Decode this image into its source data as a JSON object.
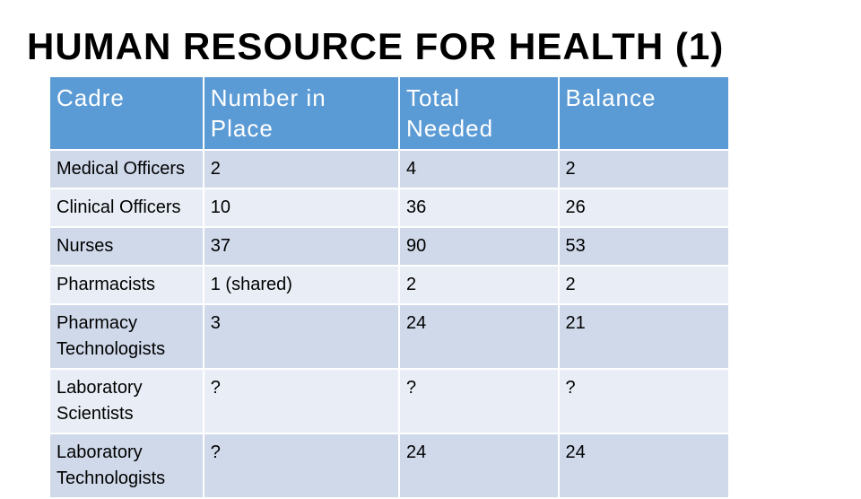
{
  "title": "HUMAN RESOURCE FOR HEALTH (1)",
  "table": {
    "header": [
      "Cadre",
      "Number in Place",
      "Total Needed",
      "Balance"
    ],
    "rows": [
      [
        "Medical Officers",
        "2",
        "4",
        "2"
      ],
      [
        "Clinical Officers",
        "10",
        "36",
        "26"
      ],
      [
        "Nurses",
        "37",
        "90",
        "53"
      ],
      [
        "Pharmacists",
        "1 (shared)",
        "2",
        "2"
      ],
      [
        "Pharmacy Technologists",
        "3",
        "24",
        "21"
      ],
      [
        "Laboratory Scientists",
        "?",
        "?",
        "?"
      ],
      [
        "Laboratory Technologists",
        "?",
        "24",
        "24"
      ]
    ]
  }
}
